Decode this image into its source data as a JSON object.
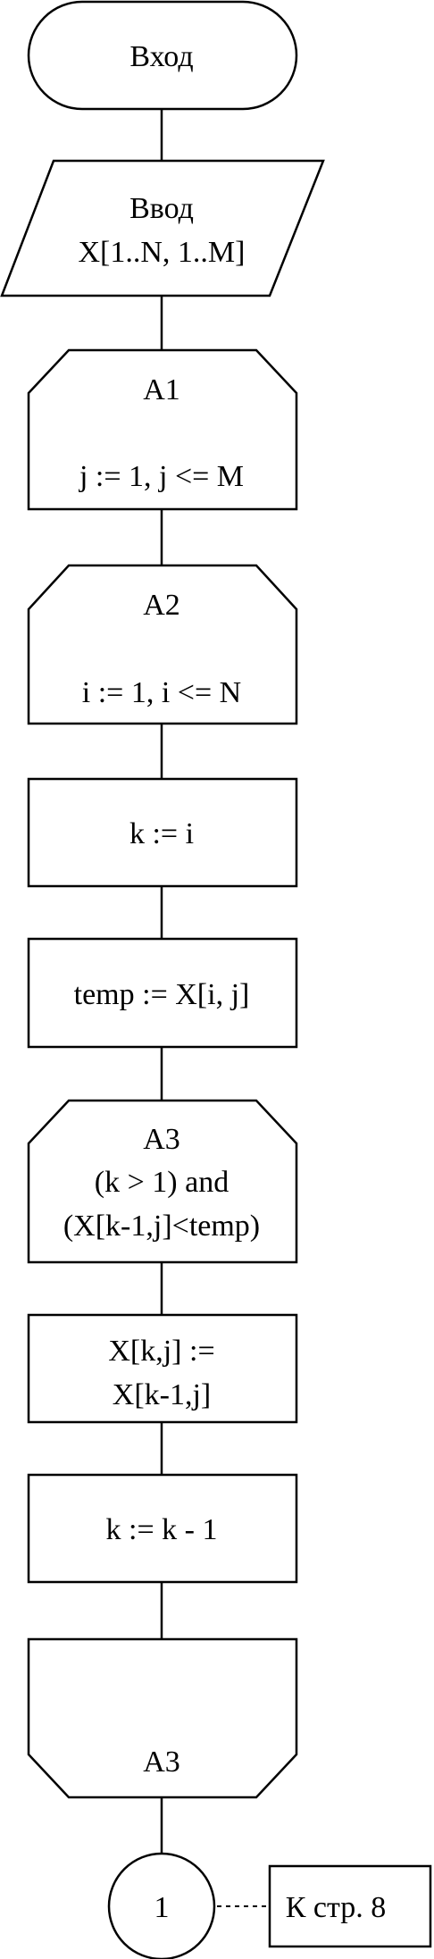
{
  "flowchart": {
    "start": {
      "label": "Вход"
    },
    "input": {
      "line1": "Ввод",
      "line2": "X[1..N, 1..M]"
    },
    "loop_a1": {
      "name": "A1",
      "condition": "j := 1, j <= M"
    },
    "loop_a2": {
      "name": "A2",
      "condition": "i := 1, i <= N"
    },
    "assign_k": {
      "label": "k := i"
    },
    "assign_temp": {
      "label": "temp := X[i, j]"
    },
    "loop_a3": {
      "name": "A3",
      "line1": "(k > 1) and",
      "line2": "(X[k-1,j]<temp)"
    },
    "shift": {
      "line1": "X[k,j] :=",
      "line2": "X[k-1,j]"
    },
    "decrement": {
      "label": "k := k - 1"
    },
    "loop_a3_end": {
      "name": "A3"
    },
    "connector": {
      "label": "1"
    },
    "page_ref": {
      "label": "К стр. 8"
    }
  }
}
